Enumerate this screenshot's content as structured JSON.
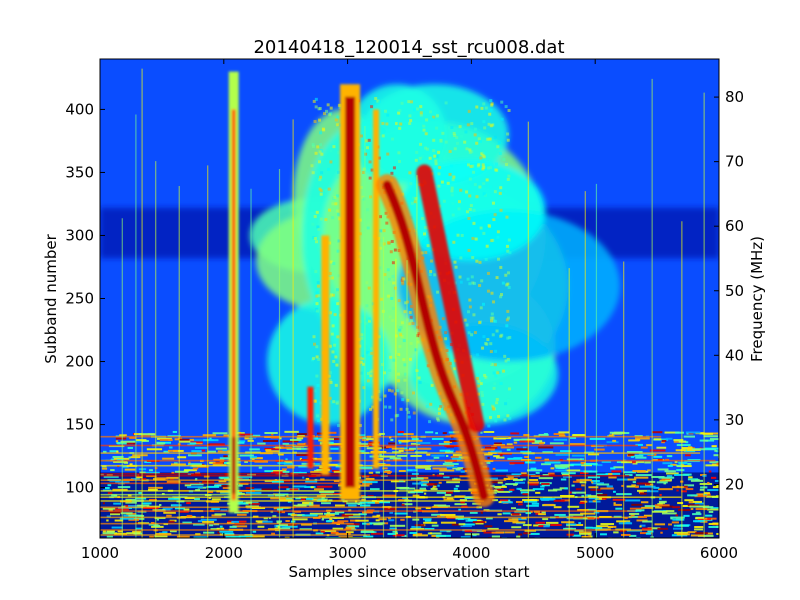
{
  "chart_data": {
    "type": "heatmap",
    "title": "20140418_120014_sst_rcu008.dat",
    "xlabel": "Samples since observation start",
    "ylabel": "Subband number",
    "y2label": "Frequency (MHz)",
    "xlim": [
      1000,
      6000
    ],
    "ylim": [
      60,
      440
    ],
    "y2lim": [
      11.7,
      85.9
    ],
    "x_ticks": [
      1000,
      2000,
      3000,
      4000,
      5000,
      6000
    ],
    "y_ticks": [
      100,
      150,
      200,
      250,
      300,
      350,
      400
    ],
    "y2_ticks": [
      20,
      30,
      40,
      50,
      60,
      70,
      80
    ],
    "colormap": "jet",
    "colors": {
      "background": "#0a4dff",
      "dark_band": "#0015b0",
      "hot": "#b00000",
      "warm": "#ffd020",
      "mid": "#40e0d0"
    },
    "features": [
      {
        "name": "narrow burst",
        "x_center": 2080,
        "subband_range": [
          80,
          430
        ],
        "intensity": "high"
      },
      {
        "name": "main burst 1",
        "x_center": 3020,
        "subband_range": [
          90,
          420
        ],
        "intensity": "high"
      },
      {
        "name": "drifting burst",
        "x_start": 3320,
        "x_end": 4100,
        "subband_start": 320,
        "subband_end": 90,
        "intensity": "high"
      },
      {
        "name": "broadband emission",
        "x_range": [
          2700,
          4400
        ],
        "subband_range": [
          140,
          420
        ],
        "intensity": "medium"
      },
      {
        "name": "low band interference",
        "x_range": [
          1000,
          6000
        ],
        "subband_range": [
          60,
          145
        ],
        "intensity": "mixed"
      },
      {
        "name": "dark absorption band",
        "x_range": [
          1000,
          6000
        ],
        "subband_range": [
          285,
          320
        ],
        "intensity": "low"
      }
    ]
  }
}
